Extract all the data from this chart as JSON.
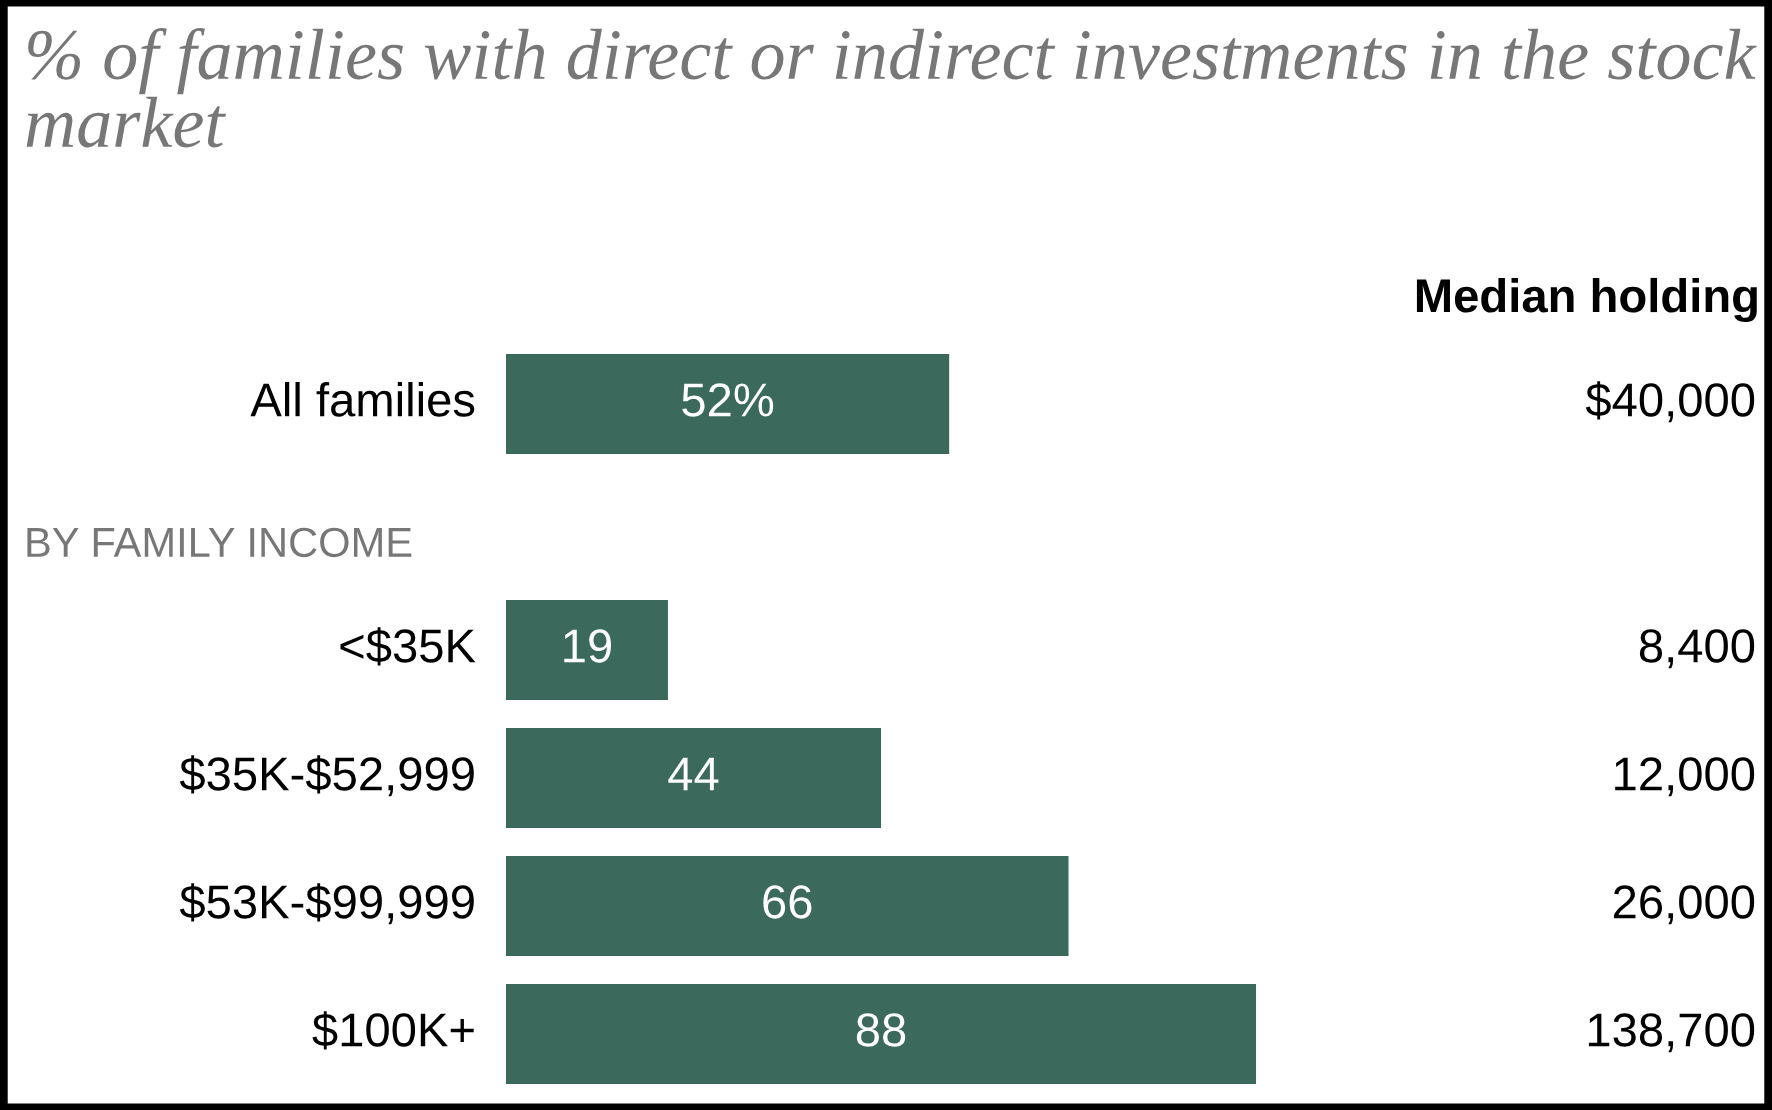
{
  "chart_data": {
    "type": "bar",
    "orientation": "horizontal",
    "title": "% of families with direct or indirect investments in the stock market",
    "categories": [
      "All families",
      "<$35K",
      "$35K-$52,999",
      "$53K-$99,999",
      "$100K+"
    ],
    "values": [
      52,
      19,
      44,
      66,
      88
    ],
    "value_labels": [
      "52%",
      "19",
      "44",
      "66",
      "88"
    ],
    "color": "#3b6a5d",
    "annotations": [
      "BY FAMILY INCOME",
      "Median holding",
      "$40,000",
      "8,400",
      "12,000",
      "26,000",
      "138,700"
    ]
  }
}
